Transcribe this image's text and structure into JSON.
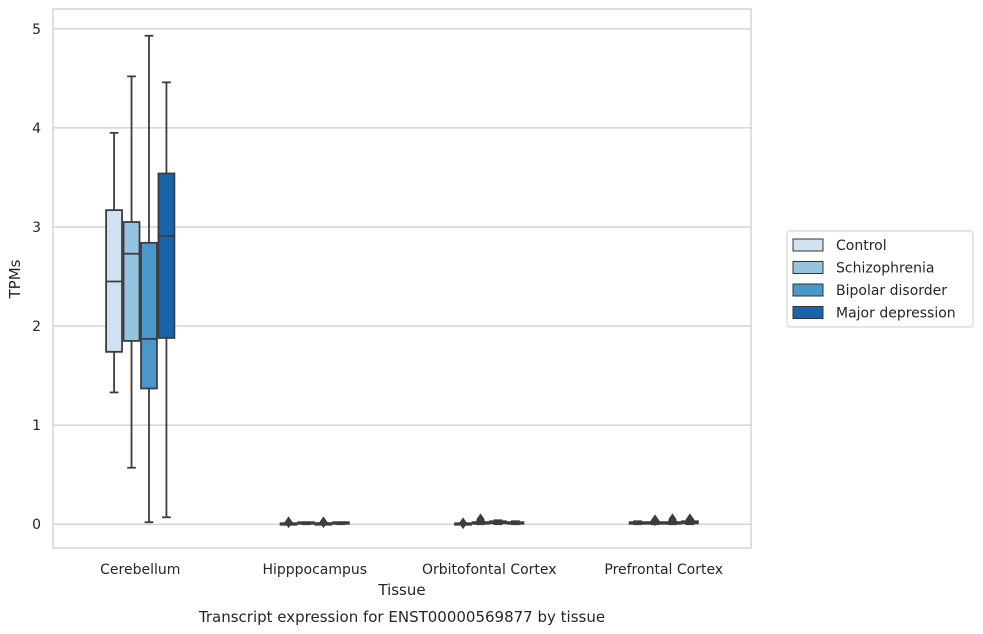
{
  "chart_data": {
    "type": "box",
    "title": "Transcript expression for ENST00000569877 by tissue",
    "xlabel": "Tissue",
    "ylabel": "TPMs",
    "ylim": [
      -0.24,
      5.2
    ],
    "yticks": [
      "0",
      "1",
      "2",
      "3",
      "4",
      "5"
    ],
    "grid": true,
    "legend_placement": "right",
    "categories": [
      "Cerebellum",
      "Hipppocampus",
      "Orbitofontal Cortex",
      "Prefrontal Cortex"
    ],
    "series": [
      {
        "name": "Control",
        "color": "#d0e1f2",
        "boxes": [
          {
            "min": 1.33,
            "q1": 1.74,
            "median": 2.45,
            "q3": 3.17,
            "max": 3.95,
            "outliers": []
          },
          {
            "min": 0.0,
            "q1": 0.0,
            "median": 0.0,
            "q3": 0.01,
            "max": 0.01,
            "outliers": [
              0.02
            ]
          },
          {
            "min": 0.0,
            "q1": 0.0,
            "median": 0.0,
            "q3": 0.01,
            "max": 0.01,
            "outliers": [
              0.01
            ]
          },
          {
            "min": 0.0,
            "q1": 0.01,
            "median": 0.02,
            "q3": 0.02,
            "max": 0.03,
            "outliers": []
          }
        ]
      },
      {
        "name": "Schizophrenia",
        "color": "#94c4df",
        "boxes": [
          {
            "min": 0.57,
            "q1": 1.85,
            "median": 2.73,
            "q3": 3.05,
            "max": 4.52,
            "outliers": []
          },
          {
            "min": 0.0,
            "q1": 0.01,
            "median": 0.01,
            "q3": 0.02,
            "max": 0.02,
            "outliers": []
          },
          {
            "min": 0.0,
            "q1": 0.01,
            "median": 0.02,
            "q3": 0.02,
            "max": 0.03,
            "outliers": [
              0.05
            ]
          },
          {
            "min": 0.0,
            "q1": 0.01,
            "median": 0.02,
            "q3": 0.02,
            "max": 0.03,
            "outliers": [
              0.04
            ]
          }
        ]
      },
      {
        "name": "Bipolar disorder",
        "color": "#4a98c9",
        "boxes": [
          {
            "min": 0.02,
            "q1": 1.37,
            "median": 1.87,
            "q3": 2.84,
            "max": 4.93,
            "outliers": []
          },
          {
            "min": 0.0,
            "q1": 0.0,
            "median": 0.01,
            "q3": 0.01,
            "max": 0.01,
            "outliers": [
              0.02
            ]
          },
          {
            "min": 0.0,
            "q1": 0.01,
            "median": 0.02,
            "q3": 0.03,
            "max": 0.04,
            "outliers": []
          },
          {
            "min": 0.0,
            "q1": 0.01,
            "median": 0.02,
            "q3": 0.02,
            "max": 0.03,
            "outliers": [
              0.05
            ]
          }
        ]
      },
      {
        "name": "Major depression",
        "color": "#1764ab",
        "boxes": [
          {
            "min": 0.07,
            "q1": 1.88,
            "median": 2.91,
            "q3": 3.54,
            "max": 4.46,
            "outliers": []
          },
          {
            "min": 0.0,
            "q1": 0.01,
            "median": 0.01,
            "q3": 0.02,
            "max": 0.02,
            "outliers": []
          },
          {
            "min": 0.0,
            "q1": 0.01,
            "median": 0.02,
            "q3": 0.02,
            "max": 0.03,
            "outliers": []
          },
          {
            "min": 0.0,
            "q1": 0.01,
            "median": 0.02,
            "q3": 0.03,
            "max": 0.04,
            "outliers": [
              0.05
            ]
          }
        ]
      }
    ]
  }
}
